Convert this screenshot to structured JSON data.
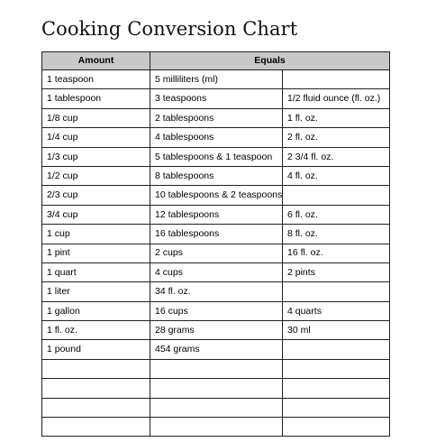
{
  "title": "Cooking Conversion Chart",
  "headers": {
    "amount": "Amount",
    "equals": "Equals"
  },
  "rows": [
    [
      "1 teaspoon",
      "5 milliliters (ml)",
      ""
    ],
    [
      "1 tablespoon",
      "3 teaspoons",
      "1/2 fluid ounce (fl. oz.)"
    ],
    [
      "1/8 cup",
      "2 tablespoons",
      "1 fl. oz."
    ],
    [
      "1/4 cup",
      "4 tablespoons",
      "2 fl. oz."
    ],
    [
      "1/3 cup",
      "5 tablespoons & 1 teaspoon",
      "2 3/4 fl. oz."
    ],
    [
      "1/2 cup",
      "8 tablespoons",
      "4 fl. oz."
    ],
    [
      "2/3 cup",
      "10 tablespoons & 2 teaspoons",
      ""
    ],
    [
      "3/4 cup",
      "12 tablespoons",
      "6 fl. oz."
    ],
    [
      "1 cup",
      "16 tablespoons",
      "8 fl. oz."
    ],
    [
      "1 pint",
      "2 cups",
      "16 fl. oz."
    ],
    [
      "1 quart",
      "4 cups",
      "2 pints"
    ],
    [
      "1 liter",
      "34 fl. oz.",
      ""
    ],
    [
      "1 gallon",
      "16 cups",
      "4 quarts"
    ],
    [
      "1 fl. oz.",
      "28 grams",
      "30 ml"
    ],
    [
      "1 pound",
      "454 grams",
      ""
    ],
    [
      "",
      "",
      ""
    ],
    [
      "",
      "",
      ""
    ],
    [
      "",
      "",
      ""
    ],
    [
      "",
      "",
      ""
    ]
  ]
}
